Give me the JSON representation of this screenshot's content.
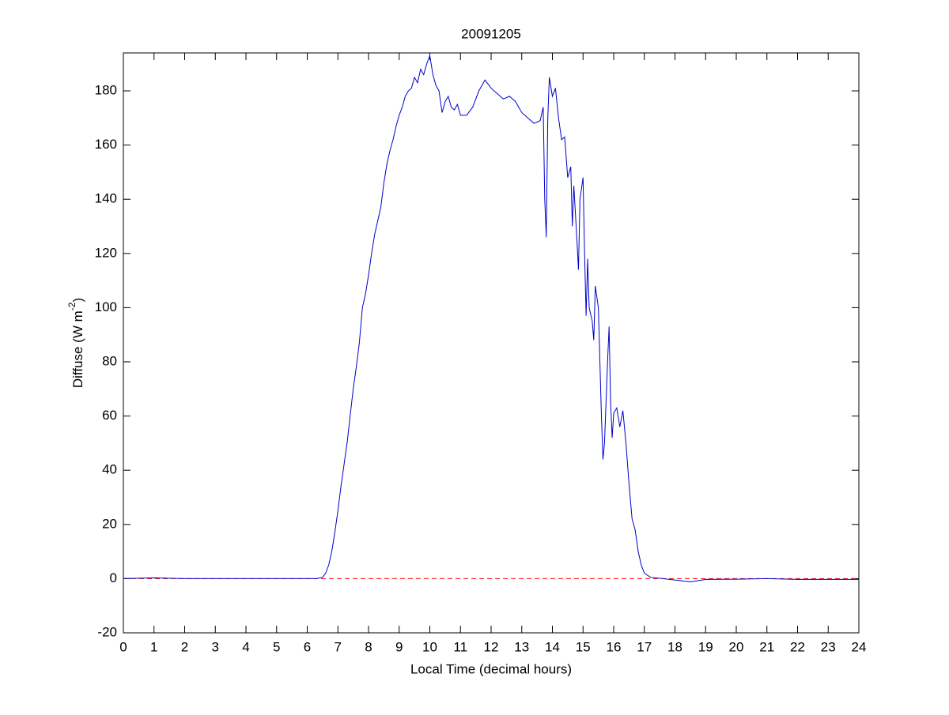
{
  "chart_data": {
    "type": "line",
    "title": "20091205",
    "xlabel": "Local Time (decimal hours)",
    "ylabel": {
      "text": "Diffuse (W m",
      "superscript": "-2",
      "suffix": ")"
    },
    "x": [
      0,
      1,
      2,
      3,
      4,
      5,
      6,
      6.3,
      6.5,
      6.6,
      6.7,
      6.8,
      6.9,
      7.0,
      7.1,
      7.2,
      7.3,
      7.4,
      7.5,
      7.6,
      7.7,
      7.8,
      7.9,
      8.0,
      8.1,
      8.2,
      8.3,
      8.4,
      8.5,
      8.6,
      8.7,
      8.8,
      8.9,
      9.0,
      9.1,
      9.2,
      9.3,
      9.4,
      9.5,
      9.6,
      9.7,
      9.8,
      9.9,
      10.0,
      10.1,
      10.2,
      10.3,
      10.4,
      10.5,
      10.6,
      10.7,
      10.8,
      10.9,
      11.0,
      11.2,
      11.4,
      11.6,
      11.8,
      12.0,
      12.2,
      12.4,
      12.6,
      12.8,
      13.0,
      13.2,
      13.4,
      13.6,
      13.7,
      13.75,
      13.8,
      13.85,
      13.9,
      14.0,
      14.1,
      14.2,
      14.3,
      14.4,
      14.5,
      14.6,
      14.65,
      14.7,
      14.8,
      14.85,
      14.9,
      15.0,
      15.05,
      15.1,
      15.15,
      15.2,
      15.3,
      15.35,
      15.4,
      15.5,
      15.6,
      15.65,
      15.7,
      15.8,
      15.85,
      15.9,
      15.95,
      16.0,
      16.1,
      16.2,
      16.3,
      16.4,
      16.5,
      16.6,
      16.7,
      16.8,
      16.9,
      17.0,
      17.2,
      18,
      18.5,
      19,
      20,
      21,
      22,
      23,
      24
    ],
    "values": [
      0,
      0.3,
      0,
      0,
      0,
      0,
      0,
      0,
      0.5,
      2,
      5,
      10,
      17,
      25,
      34,
      42,
      50,
      60,
      70,
      78,
      87,
      100,
      105,
      112,
      120,
      127,
      132,
      137,
      146,
      153,
      158,
      162,
      167,
      171,
      174,
      178,
      180,
      181,
      185,
      183,
      188,
      186,
      190,
      193,
      186,
      182,
      180,
      172,
      176,
      178,
      174,
      173,
      175,
      171,
      171,
      174,
      180,
      184,
      181,
      179,
      177,
      178,
      176,
      172,
      170,
      168,
      169,
      174,
      140,
      126,
      170,
      185,
      178,
      181,
      170,
      162,
      163,
      148,
      152,
      130,
      145,
      125,
      114,
      140,
      148,
      120,
      97,
      118,
      100,
      95,
      88,
      108,
      100,
      60,
      44,
      50,
      80,
      93,
      65,
      52,
      61,
      63,
      56,
      62,
      50,
      35,
      22,
      18,
      10,
      5,
      2,
      0.5,
      -0.5,
      -1.2,
      -0.3,
      -0.2,
      0,
      -0.3,
      -0.3,
      -0.3
    ],
    "color": "#0000cc",
    "hline": {
      "value": 0,
      "color": "#ff0000",
      "dashed": true
    },
    "xlim": [
      0,
      24
    ],
    "xticks": [
      0,
      1,
      2,
      3,
      4,
      5,
      6,
      7,
      8,
      9,
      10,
      11,
      12,
      13,
      14,
      15,
      16,
      17,
      18,
      19,
      20,
      21,
      22,
      23,
      24
    ],
    "ylim": [
      -20,
      194
    ],
    "yticks": [
      -20,
      0,
      20,
      40,
      60,
      80,
      100,
      120,
      140,
      160,
      180
    ],
    "grid": false
  }
}
